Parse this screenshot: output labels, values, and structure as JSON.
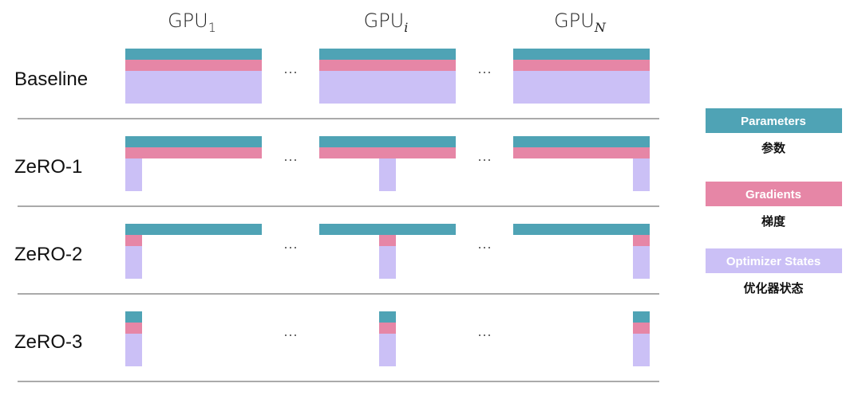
{
  "colors": {
    "parameters": "#4fa3b5",
    "gradients": "#e686a6",
    "optimizer_states": "#cbc0f6",
    "divider": "#555555"
  },
  "columns": [
    {
      "label": "GPU",
      "subscript": "1"
    },
    {
      "label": "GPU",
      "subscript": "i"
    },
    {
      "label": "GPU",
      "subscript": "N"
    }
  ],
  "ellipsis": "···",
  "rows": [
    {
      "label": "Baseline",
      "parameters": "full",
      "gradients": "full",
      "optimizer_states": "full"
    },
    {
      "label": "ZeRO-1",
      "parameters": "full",
      "gradients": "full",
      "optimizer_states": "partitioned"
    },
    {
      "label": "ZeRO-2",
      "parameters": "full",
      "gradients": "partitioned",
      "optimizer_states": "partitioned"
    },
    {
      "label": "ZeRO-3",
      "parameters": "partitioned",
      "gradients": "partitioned",
      "optimizer_states": "partitioned"
    }
  ],
  "legend": [
    {
      "key": "parameters",
      "label": "Parameters",
      "caption": "参数"
    },
    {
      "key": "gradients",
      "label": "Gradients",
      "caption": "梯度"
    },
    {
      "key": "optimizer_states",
      "label": "Optimizer States",
      "caption": "优化器状态"
    }
  ]
}
